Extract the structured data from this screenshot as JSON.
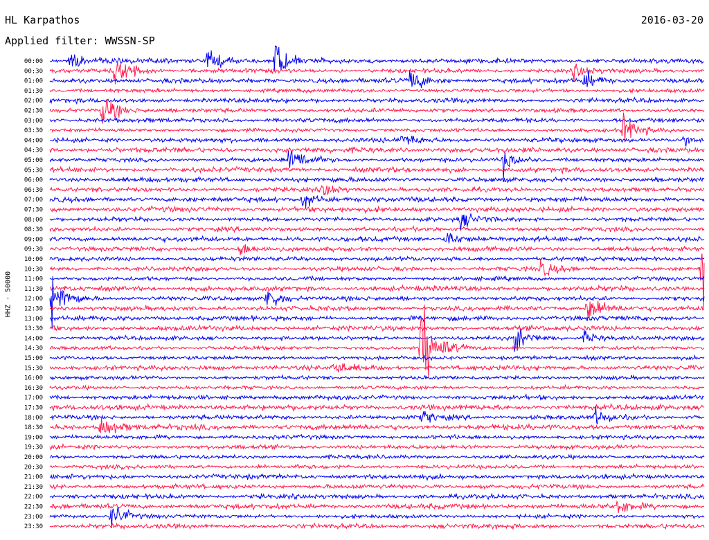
{
  "header": {
    "station": "HL Karpathos",
    "date": "2016-03-20",
    "filter": "Applied filter: WWSSN-SP"
  },
  "chart_data": {
    "type": "line",
    "title": "HL Karpathos",
    "ylabel": "HHZ - 50000",
    "colors": [
      "#0000ee",
      "#ff1a4d"
    ],
    "time_labels": [
      "00:00",
      "00:30",
      "01:00",
      "01:30",
      "02:00",
      "02:30",
      "03:00",
      "03:30",
      "04:00",
      "04:30",
      "05:00",
      "05:30",
      "06:00",
      "06:30",
      "07:00",
      "07:30",
      "08:00",
      "08:30",
      "09:00",
      "09:30",
      "10:00",
      "10:30",
      "11:00",
      "11:30",
      "12:00",
      "12:30",
      "13:00",
      "13:30",
      "14:00",
      "14:30",
      "15:00",
      "15:30",
      "16:00",
      "16:30",
      "17:00",
      "17:30",
      "18:00",
      "18:30",
      "19:00",
      "19:30",
      "20:00",
      "20:30",
      "21:00",
      "21:30",
      "22:00",
      "22:30",
      "23:00",
      "23:30"
    ],
    "events": [
      {
        "row": 0,
        "minute": 0.9,
        "amp": 14
      },
      {
        "row": 0,
        "minute": 7.2,
        "amp": 16
      },
      {
        "row": 0,
        "minute": 10.3,
        "amp": 22
      },
      {
        "row": 1,
        "minute": 3.0,
        "amp": 20
      },
      {
        "row": 1,
        "minute": 24.0,
        "amp": 10
      },
      {
        "row": 2,
        "minute": 16.5,
        "amp": 14
      },
      {
        "row": 2,
        "minute": 24.5,
        "amp": 10
      },
      {
        "row": 5,
        "minute": 2.4,
        "amp": 22
      },
      {
        "row": 7,
        "minute": 26.3,
        "amp": 18
      },
      {
        "row": 8,
        "minute": 16.1,
        "amp": 8
      },
      {
        "row": 8,
        "minute": 29.0,
        "amp": 6
      },
      {
        "row": 10,
        "minute": 11.0,
        "amp": 22
      },
      {
        "row": 10,
        "minute": 20.8,
        "amp": 14
      },
      {
        "row": 13,
        "minute": 12.5,
        "amp": 10
      },
      {
        "row": 14,
        "minute": 11.6,
        "amp": 12
      },
      {
        "row": 16,
        "minute": 18.8,
        "amp": 10
      },
      {
        "row": 18,
        "minute": 18.2,
        "amp": 10
      },
      {
        "row": 19,
        "minute": 8.7,
        "amp": 8
      },
      {
        "row": 21,
        "minute": 22.5,
        "amp": 10
      },
      {
        "row": 21,
        "minute": 29.9,
        "amp": 90
      },
      {
        "row": 24,
        "minute": 0.1,
        "amp": 30
      },
      {
        "row": 24,
        "minute": 9.9,
        "amp": 18
      },
      {
        "row": 25,
        "minute": 24.6,
        "amp": 22
      },
      {
        "row": 28,
        "minute": 21.3,
        "amp": 16
      },
      {
        "row": 28,
        "minute": 24.5,
        "amp": 8
      },
      {
        "row": 29,
        "minute": 17.0,
        "amp": 60
      },
      {
        "row": 31,
        "minute": 13.0,
        "amp": 8
      },
      {
        "row": 36,
        "minute": 17.1,
        "amp": 8
      },
      {
        "row": 36,
        "minute": 25.0,
        "amp": 10
      },
      {
        "row": 37,
        "minute": 2.3,
        "amp": 16
      },
      {
        "row": 45,
        "minute": 26.0,
        "amp": 10
      },
      {
        "row": 46,
        "minute": 2.8,
        "amp": 18
      }
    ]
  }
}
